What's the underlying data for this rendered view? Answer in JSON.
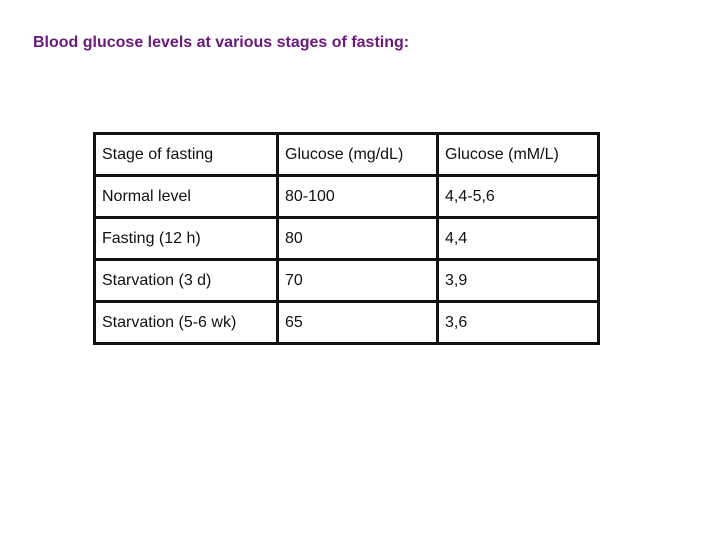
{
  "title": "Blood glucose levels at various stages of fasting:",
  "table": {
    "headers": [
      "Stage of fasting",
      "Glucose (mg/dL)",
      "Glucose (mM/L)"
    ],
    "rows": [
      [
        "Normal level",
        "80-100",
        "4,4-5,6"
      ],
      [
        "Fasting (12 h)",
        "80",
        "4,4"
      ],
      [
        "Starvation (3 d)",
        "70",
        "3,9"
      ],
      [
        "Starvation (5-6 wk)",
        "65",
        "3,6"
      ]
    ]
  },
  "colors": {
    "title": "#6b1a7b",
    "text": "#111111",
    "border": "#111111"
  }
}
